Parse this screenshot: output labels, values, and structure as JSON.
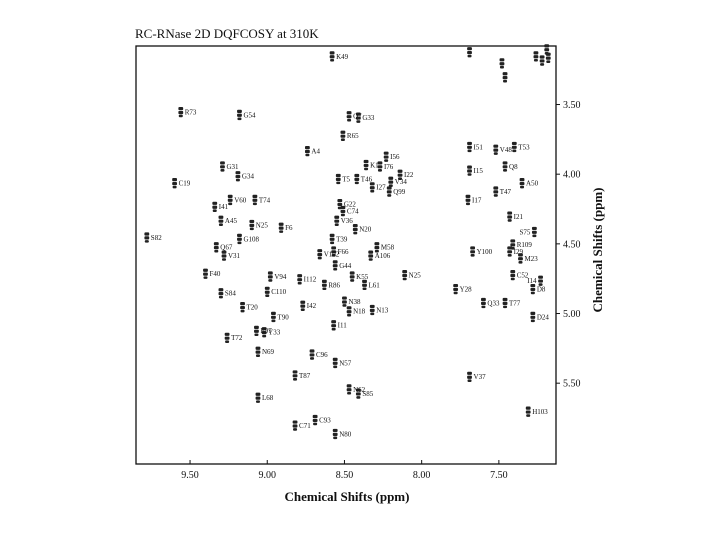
{
  "title": "RC-RNase    2D DQFCOSY at 310K",
  "chart_data": {
    "type": "scatter",
    "title": "RC-RNase    2D DQFCOSY at 310K",
    "xlabel": "Chemical Shifts (ppm)",
    "ylabel": "Chemical Shifts (ppm)",
    "xlim": [
      9.85,
      7.13
    ],
    "ylim": [
      3.08,
      6.08
    ],
    "x_ticks": [
      {
        "value": 9.5,
        "label": "9.50"
      },
      {
        "value": 9.0,
        "label": "9.00"
      },
      {
        "value": 8.5,
        "label": "8.50"
      },
      {
        "value": 8.0,
        "label": "8.00"
      },
      {
        "value": 7.5,
        "label": "7.50"
      }
    ],
    "y_ticks": [
      {
        "value": 3.5,
        "label": "3.50"
      },
      {
        "value": 4.0,
        "label": "4.00"
      },
      {
        "value": 4.5,
        "label": "4.50"
      },
      {
        "value": 5.0,
        "label": "5.00"
      },
      {
        "value": 5.5,
        "label": "5.50"
      }
    ],
    "grid": false,
    "points": [
      {
        "label": "K49",
        "x": 8.58,
        "y": 3.15
      },
      {
        "label": "R73",
        "x": 9.56,
        "y": 3.55
      },
      {
        "label": "G54",
        "x": 9.18,
        "y": 3.57
      },
      {
        "label": "Q7",
        "x": 8.47,
        "y": 3.58
      },
      {
        "label": "G33",
        "x": 8.41,
        "y": 3.59
      },
      {
        "label": "R65",
        "x": 8.51,
        "y": 3.72
      },
      {
        "label": "A4",
        "x": 8.74,
        "y": 3.83
      },
      {
        "label": "I51",
        "x": 7.69,
        "y": 3.8
      },
      {
        "label": "V48",
        "x": 7.52,
        "y": 3.82
      },
      {
        "label": "T53",
        "x": 7.4,
        "y": 3.8
      },
      {
        "label": "I56",
        "x": 8.23,
        "y": 3.87
      },
      {
        "label": "K1",
        "x": 8.36,
        "y": 3.93
      },
      {
        "label": "I76",
        "x": 8.27,
        "y": 3.94
      },
      {
        "label": "G31",
        "x": 9.29,
        "y": 3.94
      },
      {
        "label": "Q8",
        "x": 7.46,
        "y": 3.94
      },
      {
        "label": "I15",
        "x": 7.69,
        "y": 3.97
      },
      {
        "label": "I22",
        "x": 8.14,
        "y": 4.0
      },
      {
        "label": "T5",
        "x": 8.54,
        "y": 4.03
      },
      {
        "label": "T46",
        "x": 8.42,
        "y": 4.03
      },
      {
        "label": "V34",
        "x": 8.2,
        "y": 4.05
      },
      {
        "label": "G34",
        "x": 9.19,
        "y": 4.01
      },
      {
        "label": "C19",
        "x": 9.6,
        "y": 4.06
      },
      {
        "label": "A50",
        "x": 7.35,
        "y": 4.06
      },
      {
        "label": "I27",
        "x": 8.32,
        "y": 4.09
      },
      {
        "label": "Q99",
        "x": 8.21,
        "y": 4.12
      },
      {
        "label": "T47",
        "x": 7.52,
        "y": 4.12
      },
      {
        "label": "I17",
        "x": 7.7,
        "y": 4.18
      },
      {
        "label": "V60",
        "x": 9.24,
        "y": 4.18
      },
      {
        "label": "T74",
        "x": 9.08,
        "y": 4.18
      },
      {
        "label": "G22",
        "x": 8.53,
        "y": 4.21
      },
      {
        "label": "I41",
        "x": 9.34,
        "y": 4.23
      },
      {
        "label": "C74",
        "x": 8.51,
        "y": 4.26
      },
      {
        "label": "I21",
        "x": 7.43,
        "y": 4.3
      },
      {
        "label": "A45",
        "x": 9.3,
        "y": 4.33
      },
      {
        "label": "V36",
        "x": 8.55,
        "y": 4.33
      },
      {
        "label": "N25",
        "x": 9.1,
        "y": 4.36
      },
      {
        "label": "F6",
        "x": 8.91,
        "y": 4.38
      },
      {
        "label": "N20",
        "x": 8.43,
        "y": 4.39
      },
      {
        "label": "S75",
        "x": 7.27,
        "y": 4.41
      },
      {
        "label": "S82",
        "x": 9.78,
        "y": 4.45
      },
      {
        "label": "G108",
        "x": 9.18,
        "y": 4.46
      },
      {
        "label": "T39",
        "x": 8.58,
        "y": 4.46
      },
      {
        "label": "R109",
        "x": 7.41,
        "y": 4.5
      },
      {
        "label": "Q67",
        "x": 9.33,
        "y": 4.52
      },
      {
        "label": "M58",
        "x": 8.29,
        "y": 4.52
      },
      {
        "label": "F66",
        "x": 8.57,
        "y": 4.55
      },
      {
        "label": "Y100",
        "x": 7.67,
        "y": 4.55
      },
      {
        "label": "I29",
        "x": 7.43,
        "y": 4.55
      },
      {
        "label": "V31",
        "x": 9.28,
        "y": 4.58
      },
      {
        "label": "V102",
        "x": 8.66,
        "y": 4.57
      },
      {
        "label": "A106",
        "x": 8.33,
        "y": 4.58
      },
      {
        "label": "M23",
        "x": 7.36,
        "y": 4.6
      },
      {
        "label": "G44",
        "x": 8.56,
        "y": 4.65
      },
      {
        "label": "F40",
        "x": 9.4,
        "y": 4.71
      },
      {
        "label": "V94",
        "x": 8.98,
        "y": 4.73
      },
      {
        "label": "I112",
        "x": 8.79,
        "y": 4.75
      },
      {
        "label": "K55",
        "x": 8.45,
        "y": 4.73
      },
      {
        "label": "N25",
        "x": 8.11,
        "y": 4.72
      },
      {
        "label": "C52",
        "x": 7.41,
        "y": 4.72
      },
      {
        "label": "I14",
        "x": 7.23,
        "y": 4.76
      },
      {
        "label": "R86",
        "x": 8.63,
        "y": 4.79
      },
      {
        "label": "L61",
        "x": 8.37,
        "y": 4.79
      },
      {
        "label": "S84",
        "x": 9.3,
        "y": 4.85
      },
      {
        "label": "C110",
        "x": 9.0,
        "y": 4.84
      },
      {
        "label": "Y28",
        "x": 7.78,
        "y": 4.82
      },
      {
        "label": "D8",
        "x": 7.28,
        "y": 4.82
      },
      {
        "label": "T20",
        "x": 9.16,
        "y": 4.95
      },
      {
        "label": "I42",
        "x": 8.77,
        "y": 4.94
      },
      {
        "label": "N38",
        "x": 8.5,
        "y": 4.91
      },
      {
        "label": "Q33",
        "x": 7.6,
        "y": 4.92
      },
      {
        "label": "T77",
        "x": 7.46,
        "y": 4.92
      },
      {
        "label": "N18",
        "x": 8.47,
        "y": 4.98
      },
      {
        "label": "N13",
        "x": 8.32,
        "y": 4.97
      },
      {
        "label": "T90",
        "x": 8.96,
        "y": 5.02
      },
      {
        "label": "D24",
        "x": 7.28,
        "y": 5.02
      },
      {
        "label": "I11",
        "x": 8.57,
        "y": 5.08
      },
      {
        "label": "E97",
        "x": 9.07,
        "y": 5.12
      },
      {
        "label": "Y33",
        "x": 9.02,
        "y": 5.13
      },
      {
        "label": "T72",
        "x": 9.26,
        "y": 5.17
      },
      {
        "label": "N69",
        "x": 9.06,
        "y": 5.27
      },
      {
        "label": "C96",
        "x": 8.71,
        "y": 5.29
      },
      {
        "label": "N57",
        "x": 8.56,
        "y": 5.35
      },
      {
        "label": "T87",
        "x": 8.82,
        "y": 5.44
      },
      {
        "label": "V37",
        "x": 7.69,
        "y": 5.45
      },
      {
        "label": "N62",
        "x": 8.47,
        "y": 5.54
      },
      {
        "label": "S85",
        "x": 8.41,
        "y": 5.57
      },
      {
        "label": "L68",
        "x": 9.06,
        "y": 5.6
      },
      {
        "label": "H103",
        "x": 7.31,
        "y": 5.7
      },
      {
        "label": "C93",
        "x": 8.69,
        "y": 5.76
      },
      {
        "label": "C71",
        "x": 8.82,
        "y": 5.8
      },
      {
        "label": "N80",
        "x": 8.56,
        "y": 5.86
      }
    ],
    "unlabeled_points": [
      {
        "x": 7.69,
        "y": 3.12
      },
      {
        "x": 7.48,
        "y": 3.2
      },
      {
        "x": 7.46,
        "y": 3.3
      },
      {
        "x": 7.26,
        "y": 3.15
      },
      {
        "x": 7.22,
        "y": 3.18
      },
      {
        "x": 7.18,
        "y": 3.16
      },
      {
        "x": 7.19,
        "y": 3.1
      }
    ]
  }
}
